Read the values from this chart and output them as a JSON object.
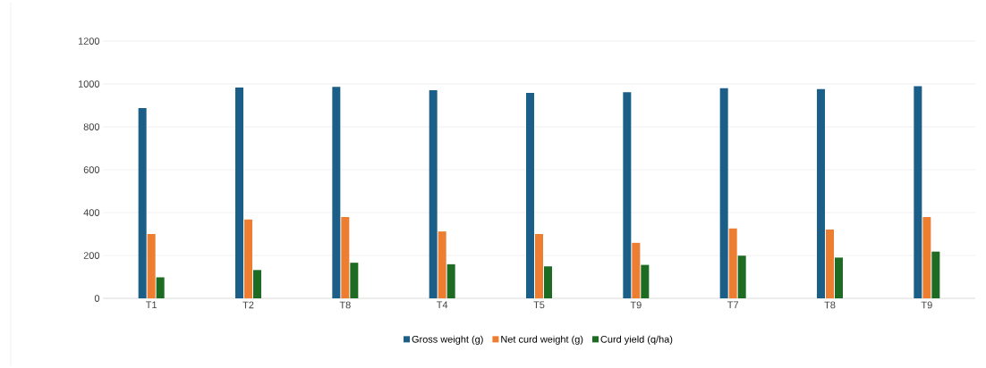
{
  "chart_data": {
    "type": "bar",
    "categories": [
      "T1",
      "T2",
      "T8",
      "T4",
      "T5",
      "T9",
      "T7",
      "T8",
      "T9"
    ],
    "series": [
      {
        "name": "Gross weight (g)",
        "color": "#1b5e87",
        "values": [
          888,
          983,
          986,
          971,
          958,
          961,
          980,
          976,
          990
        ]
      },
      {
        "name": "Net curd weight (g)",
        "color": "#ed7d31",
        "values": [
          300,
          368,
          379,
          312,
          300,
          259,
          326,
          321,
          379
        ]
      },
      {
        "name": "Curd yield (q/ha)",
        "color": "#1e6b24",
        "values": [
          98,
          132,
          166,
          159,
          149,
          156,
          199,
          190,
          218
        ]
      }
    ],
    "ylim": [
      0,
      1200
    ],
    "yticks": [
      0,
      200,
      400,
      600,
      800,
      1000,
      1200
    ],
    "grid": "y",
    "legend": "bottom"
  }
}
